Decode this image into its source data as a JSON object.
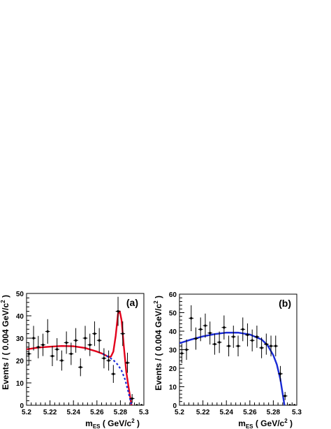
{
  "chart_data": [
    {
      "type": "scatter",
      "panel_label": "(a)",
      "xlabel": "m_ES ( GeV/c^2 )",
      "xlabel_main": "m",
      "xlabel_sub": "ES",
      "xlabel_rest": " ( GeV/c",
      "xlabel_sup": "2",
      "xlabel_end": " )",
      "ylabel": "Events / ( 0.004 GeV/c^2 )",
      "ylabel_main": "Events / ( 0.004 GeV/c",
      "ylabel_sup": "2",
      "ylabel_end": " )",
      "xlim": [
        5.2,
        5.3
      ],
      "ylim": [
        0,
        50
      ],
      "xticks": [
        5.2,
        5.22,
        5.24,
        5.26,
        5.28,
        5.3
      ],
      "xtick_labels": [
        "5.2",
        "5.22",
        "5.24",
        "5.26",
        "5.28",
        "5.3"
      ],
      "yticks": [
        0,
        10,
        20,
        30,
        40,
        50
      ],
      "ytick_labels": [
        "0",
        "10",
        "20",
        "30",
        "40",
        "50"
      ],
      "grid": false,
      "data_points": [
        {
          "x": 5.202,
          "y": 23,
          "err": 5
        },
        {
          "x": 5.206,
          "y": 30,
          "err": 5.5
        },
        {
          "x": 5.21,
          "y": 26,
          "err": 5
        },
        {
          "x": 5.214,
          "y": 27,
          "err": 5
        },
        {
          "x": 5.218,
          "y": 33,
          "err": 5.5
        },
        {
          "x": 5.222,
          "y": 22,
          "err": 4.5
        },
        {
          "x": 5.226,
          "y": 25,
          "err": 5
        },
        {
          "x": 5.23,
          "y": 20,
          "err": 4.5
        },
        {
          "x": 5.234,
          "y": 28,
          "err": 5
        },
        {
          "x": 5.238,
          "y": 23,
          "err": 5
        },
        {
          "x": 5.242,
          "y": 29,
          "err": 5.5
        },
        {
          "x": 5.246,
          "y": 17,
          "err": 4
        },
        {
          "x": 5.25,
          "y": 30,
          "err": 5.5
        },
        {
          "x": 5.254,
          "y": 27,
          "err": 5
        },
        {
          "x": 5.258,
          "y": 32,
          "err": 5.5
        },
        {
          "x": 5.262,
          "y": 29,
          "err": 5.5
        },
        {
          "x": 5.266,
          "y": 21,
          "err": 4.5
        },
        {
          "x": 5.27,
          "y": 20,
          "err": 4.5
        },
        {
          "x": 5.274,
          "y": 14,
          "err": 4
        },
        {
          "x": 5.278,
          "y": 42,
          "err": 6.5
        },
        {
          "x": 5.282,
          "y": 32,
          "err": 5.5
        },
        {
          "x": 5.286,
          "y": 19,
          "err": 4.5
        },
        {
          "x": 5.29,
          "y": 3,
          "err": 2
        },
        {
          "x": 5.294,
          "y": 0,
          "err": 0
        },
        {
          "x": 5.298,
          "y": 0,
          "err": 0
        }
      ],
      "series": [
        {
          "style": "solid",
          "color": "#e3001b",
          "x": [
            5.2,
            5.21,
            5.22,
            5.23,
            5.24,
            5.25,
            5.26,
            5.265,
            5.27,
            5.272,
            5.274,
            5.276,
            5.278,
            5.2795,
            5.281,
            5.283,
            5.285,
            5.287,
            5.289,
            5.2895
          ],
          "y": [
            25,
            25.8,
            26.2,
            26.5,
            26.4,
            25.6,
            24,
            23,
            21.6,
            21.8,
            24,
            31,
            41,
            42,
            38,
            26,
            15,
            8,
            1.5,
            0
          ]
        },
        {
          "style": "dashed",
          "color": "#1a2bd6",
          "x": [
            5.265,
            5.27,
            5.274,
            5.278,
            5.281,
            5.284,
            5.287,
            5.2895
          ],
          "y": [
            23,
            21.6,
            20.2,
            18,
            15.5,
            11.5,
            5.5,
            0
          ]
        }
      ]
    },
    {
      "type": "scatter",
      "panel_label": "(b)",
      "xlabel": "m_ES ( GeV/c^2 )",
      "xlabel_main": "m",
      "xlabel_sub": "ES",
      "xlabel_rest": " ( GeV/c",
      "xlabel_sup": "2",
      "xlabel_end": " )",
      "ylabel": "Events / ( 0.004 GeV/c^2 )",
      "ylabel_main": "Events / ( 0.004 GeV/c",
      "ylabel_sup": "2",
      "ylabel_end": " )",
      "xlim": [
        5.2,
        5.3
      ],
      "ylim": [
        0,
        60
      ],
      "xticks": [
        5.2,
        5.22,
        5.24,
        5.26,
        5.28,
        5.3
      ],
      "xtick_labels": [
        "5.2",
        "5.22",
        "5.24",
        "5.26",
        "5.28",
        "5.3"
      ],
      "yticks": [
        0,
        10,
        20,
        30,
        40,
        50,
        60
      ],
      "ytick_labels": [
        "0",
        "10",
        "20",
        "30",
        "40",
        "50",
        "60"
      ],
      "grid": false,
      "data_points": [
        {
          "x": 5.202,
          "y": 28,
          "err": 5.3
        },
        {
          "x": 5.206,
          "y": 30,
          "err": 5.5
        },
        {
          "x": 5.21,
          "y": 47,
          "err": 7
        },
        {
          "x": 5.214,
          "y": 36,
          "err": 6
        },
        {
          "x": 5.218,
          "y": 41,
          "err": 6.4
        },
        {
          "x": 5.222,
          "y": 43,
          "err": 6.5
        },
        {
          "x": 5.226,
          "y": 39,
          "err": 6.2
        },
        {
          "x": 5.23,
          "y": 33,
          "err": 5.7
        },
        {
          "x": 5.234,
          "y": 34,
          "err": 5.8
        },
        {
          "x": 5.238,
          "y": 42,
          "err": 6.5
        },
        {
          "x": 5.242,
          "y": 32,
          "err": 5.6
        },
        {
          "x": 5.246,
          "y": 37,
          "err": 6
        },
        {
          "x": 5.25,
          "y": 32,
          "err": 5.6
        },
        {
          "x": 5.254,
          "y": 41,
          "err": 6.4
        },
        {
          "x": 5.258,
          "y": 38,
          "err": 6.2
        },
        {
          "x": 5.262,
          "y": 35,
          "err": 5.9
        },
        {
          "x": 5.266,
          "y": 37,
          "err": 6
        },
        {
          "x": 5.27,
          "y": 31,
          "err": 5.6
        },
        {
          "x": 5.274,
          "y": 33,
          "err": 5.7
        },
        {
          "x": 5.278,
          "y": 32,
          "err": 5.6
        },
        {
          "x": 5.282,
          "y": 32,
          "err": 5.6
        },
        {
          "x": 5.286,
          "y": 17,
          "err": 4.2
        },
        {
          "x": 5.29,
          "y": 5,
          "err": 2.2
        },
        {
          "x": 5.294,
          "y": 0,
          "err": 0
        },
        {
          "x": 5.298,
          "y": 0,
          "err": 0
        }
      ],
      "series": [
        {
          "style": "solid",
          "color": "#1a2bd6",
          "x": [
            5.2,
            5.21,
            5.22,
            5.23,
            5.24,
            5.25,
            5.26,
            5.27,
            5.275,
            5.28,
            5.283,
            5.286,
            5.288,
            5.2895
          ],
          "y": [
            33.5,
            35.5,
            37.2,
            38.4,
            39.2,
            39.2,
            38.2,
            35.5,
            32.5,
            27,
            22,
            14,
            6,
            0
          ]
        }
      ]
    }
  ]
}
